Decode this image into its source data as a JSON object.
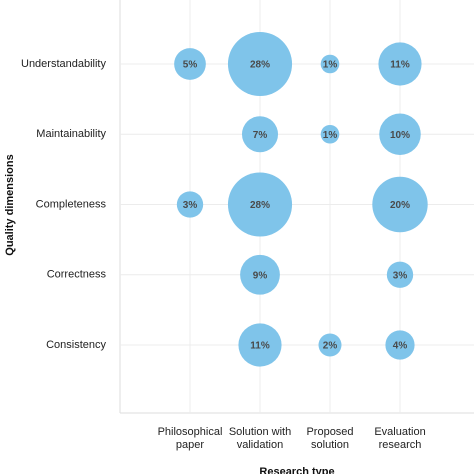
{
  "chart_data": {
    "type": "bubble",
    "x_label": "Research type",
    "y_label": "Quality dimensions",
    "categories": [
      "Philosophical paper",
      "Solution with validation",
      "Proposed solution",
      "Evaluation research"
    ],
    "color": "#7fc4ea",
    "grid": true,
    "series": [
      {
        "name": "Understandability",
        "values": [
          5,
          28,
          1,
          11
        ],
        "value_labels": [
          "5%",
          "28%",
          "1%",
          "11%"
        ]
      },
      {
        "name": "Maintainability",
        "values": [
          null,
          7,
          1,
          10
        ],
        "value_labels": [
          null,
          "7%",
          "1%",
          "10%"
        ]
      },
      {
        "name": "Completeness",
        "values": [
          3,
          28,
          null,
          20
        ],
        "value_labels": [
          "3%",
          "28%",
          null,
          "20%"
        ]
      },
      {
        "name": "Correctness",
        "values": [
          null,
          9,
          null,
          3
        ],
        "value_labels": [
          null,
          "9%",
          null,
          "3%"
        ]
      },
      {
        "name": "Consistency",
        "values": [
          null,
          11,
          2,
          4
        ],
        "value_labels": [
          null,
          "11%",
          "2%",
          "4%"
        ]
      }
    ]
  }
}
